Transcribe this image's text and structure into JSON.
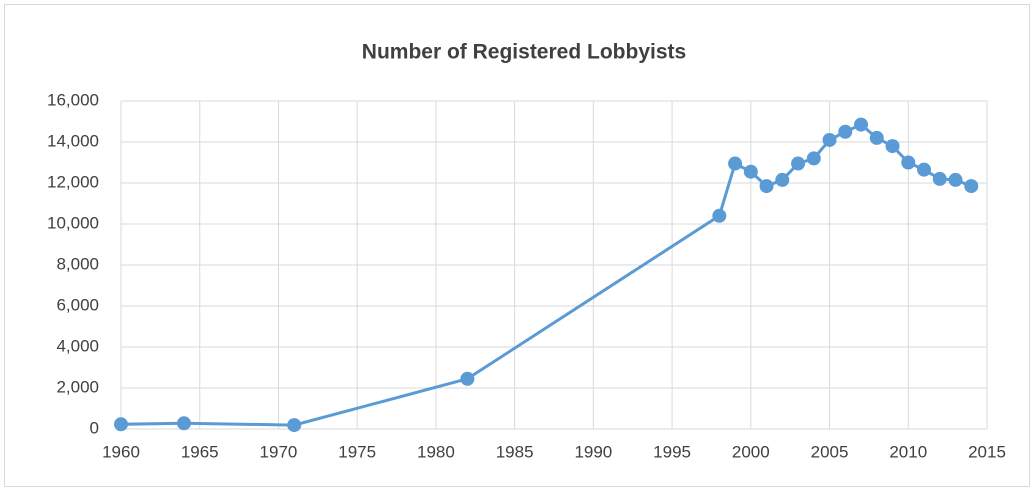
{
  "chart_data": {
    "type": "line",
    "title": "Number of Registered Lobbyists",
    "x": [
      1960,
      1964,
      1971,
      1982,
      1998,
      1999,
      2000,
      2001,
      2002,
      2003,
      2004,
      2005,
      2006,
      2007,
      2008,
      2009,
      2010,
      2011,
      2012,
      2013,
      2014
    ],
    "series": [
      {
        "name": "Registered Lobbyists",
        "color": "#5b9bd5",
        "values": [
          230,
          280,
          190,
          2450,
          10400,
          12950,
          12550,
          11850,
          12150,
          12950,
          13200,
          14100,
          14500,
          14850,
          14200,
          13800,
          13000,
          12650,
          12200,
          12150,
          11850
        ]
      }
    ],
    "xlim": [
      1960,
      2015
    ],
    "xticks": [
      1960,
      1965,
      1970,
      1975,
      1980,
      1985,
      1990,
      1995,
      2000,
      2005,
      2010,
      2015
    ],
    "ylim": [
      0,
      16000
    ],
    "yticks": [
      0,
      {
        "value": 2000,
        "label": "2,000"
      },
      {
        "value": 4000,
        "label": "4,000"
      },
      {
        "value": 6000,
        "label": "6,000"
      },
      {
        "value": 8000,
        "label": "8,000"
      },
      {
        "value": 10000,
        "label": "10,000"
      },
      {
        "value": 12000,
        "label": "12,000"
      },
      {
        "value": 14000,
        "label": "14,000"
      },
      {
        "value": 16000,
        "label": "16,000"
      }
    ],
    "grid": true,
    "legend": false
  }
}
